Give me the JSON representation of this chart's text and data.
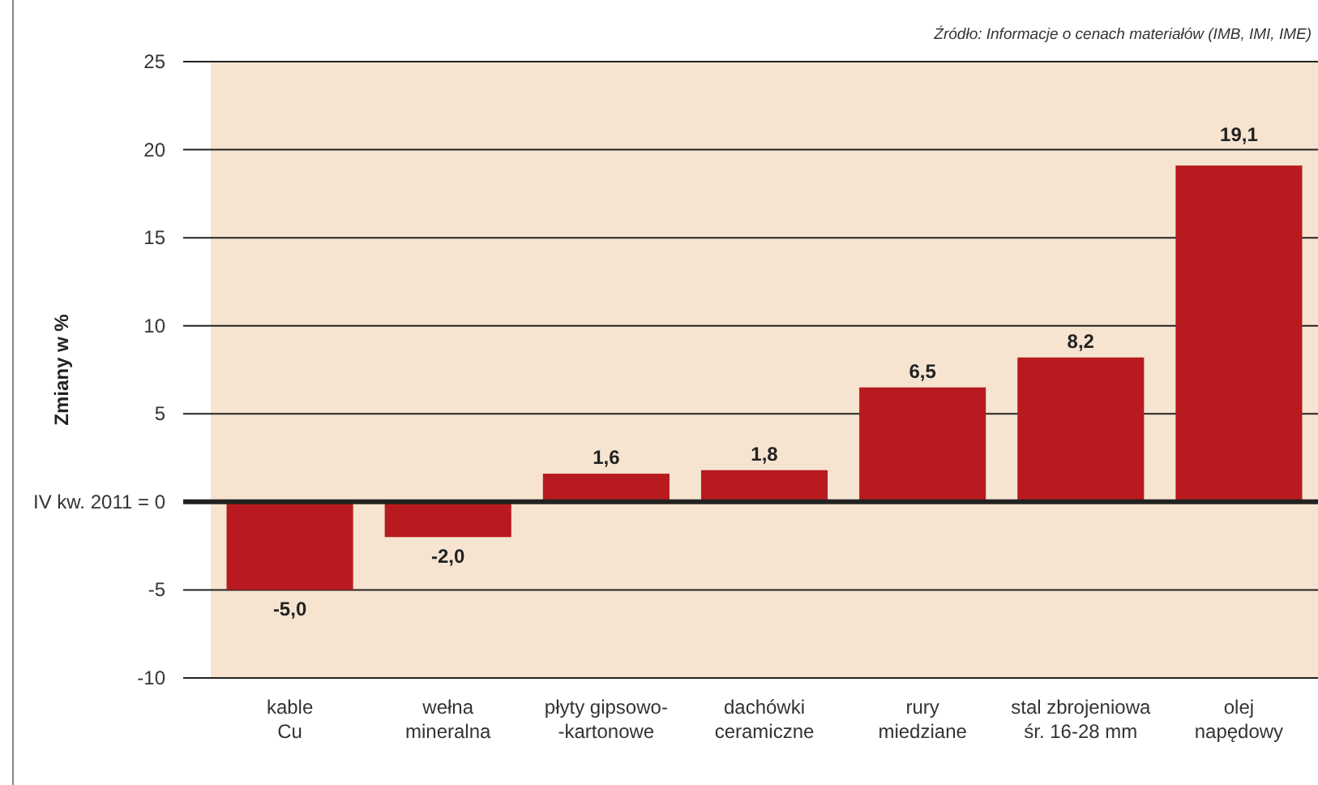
{
  "chart_data": {
    "type": "bar",
    "ylabel": "Zmiany w %",
    "categories": [
      "kable\nCu",
      "wełna\nmineralna",
      "płyty gipsowo-\n-kartonowe",
      "dachówki\nceramiczne",
      "rury\nmiedziane",
      "stal zbrojeniowa\nśr. 16-28 mm",
      "olej\nnapędowy"
    ],
    "values": [
      -5.0,
      -2.0,
      1.6,
      1.8,
      6.5,
      8.2,
      19.1
    ],
    "value_labels": [
      "-5,0",
      "-2,0",
      "1,6",
      "1,8",
      "6,5",
      "8,2",
      "19,1"
    ],
    "color": "#b81a1f",
    "ylim": [
      -10,
      25
    ],
    "yticks": [
      -10,
      -5,
      {
        "value": 0,
        "label": "IV kw. 2011 =  0"
      },
      5,
      10,
      15,
      20,
      25
    ],
    "grid": "y",
    "annotations": [
      "Źródło: Informacje o cenach materiałów (IMB, IMI, IME)"
    ]
  }
}
